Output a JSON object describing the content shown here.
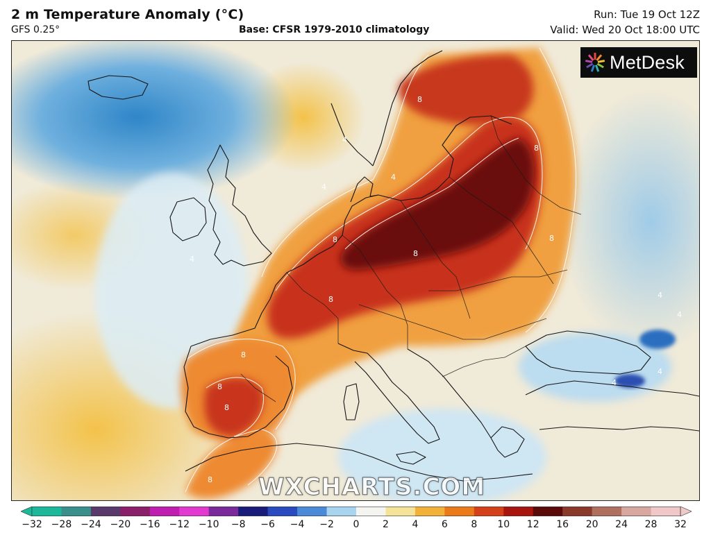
{
  "header": {
    "title": "2 m Temperature Anomaly (°C)",
    "model": "GFS 0.25°",
    "base": "Base: CFSR 1979-2010 climatology",
    "run": "Run: Tue 19 Oct 12Z",
    "valid": "Valid: Wed 20 Oct 18:00 UTC"
  },
  "logo": {
    "text": "MetDesk",
    "icon": "starburst-logo-icon"
  },
  "watermark": "WXCHARTS.COM",
  "contour_labels": [
    "4",
    "8"
  ],
  "colorbar": {
    "ticks": [
      "−32",
      "−28",
      "−24",
      "−20",
      "−16",
      "−12",
      "−10",
      "−8",
      "−6",
      "−4",
      "−2",
      "0",
      "2",
      "4",
      "6",
      "8",
      "10",
      "12",
      "16",
      "20",
      "24",
      "28",
      "32"
    ],
    "colors": [
      "#1db89a",
      "#3a8f8a",
      "#5a3a6a",
      "#8a1f6a",
      "#c01eb0",
      "#e23ad0",
      "#7a2a9a",
      "#1a1c7a",
      "#2a4ac0",
      "#4a8ad8",
      "#a8d4f0",
      "#f4f4f0",
      "#f6e39a",
      "#f2b23a",
      "#ea7a1a",
      "#d4401a",
      "#a8140e",
      "#5a0a0a",
      "#8a3a2a",
      "#b07060",
      "#d8a8a0",
      "#f0c8c8"
    ]
  },
  "map": {
    "sea_cool": "#3c8fcf",
    "sea_mild": "#bfe0f2",
    "neutral": "#f1efe6",
    "warm": "#f5cf6a",
    "hot": "#e85a1c",
    "very_hot": "#9e1a12",
    "extreme": "#4a0a08"
  }
}
